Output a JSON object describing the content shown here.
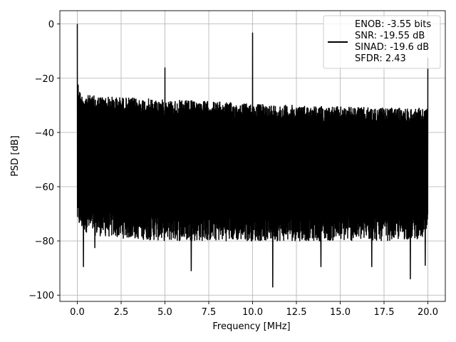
{
  "chart_data": {
    "type": "line",
    "xlabel": "Frequency [MHz]",
    "ylabel": "PSD [dB]",
    "xlim": [
      -0.996,
      20.996
    ],
    "ylim": [
      -102.3,
      4.9
    ],
    "xticks": [
      0.0,
      2.5,
      5.0,
      7.5,
      10.0,
      12.5,
      15.0,
      17.5,
      20.0
    ],
    "xtick_labels": [
      "0.0",
      "2.5",
      "5.0",
      "7.5",
      "10.0",
      "12.5",
      "15.0",
      "17.5",
      "20.0"
    ],
    "yticks": [
      0,
      -20,
      -40,
      -60,
      -80,
      -100
    ],
    "ytick_labels": [
      "0",
      "−20",
      "−40",
      "−60",
      "−80",
      "−100"
    ],
    "grid": true,
    "legend_position": "upper right",
    "series": [
      {
        "name": "ENOB: -3.55 bits\nSNR: -19.55 dB\nSINAD: -19.6 dB\nSFDR: 2.43",
        "color": "#000000",
        "noise_floor_envelope": {
          "x": [
            0.0,
            0.2,
            1.0,
            2.5,
            5.0,
            7.5,
            10.0,
            12.5,
            15.0,
            17.5,
            20.0
          ],
          "upper": [
            -20,
            -26,
            -26.5,
            -27,
            -28,
            -28.5,
            -29.5,
            -30,
            -30.5,
            -31,
            -31
          ],
          "lower": [
            -70,
            -72,
            -74,
            -75,
            -76,
            -76,
            -76,
            -76,
            -76,
            -76,
            -75
          ]
        },
        "spikes": [
          {
            "x": 0.0,
            "y": 0.0
          },
          {
            "x": 5.0,
            "y": -16.2
          },
          {
            "x": 10.0,
            "y": -3.3
          },
          {
            "x": 20.0,
            "y": -12.5
          }
        ],
        "deep_nulls": [
          {
            "x": 0.35,
            "y": -89.5
          },
          {
            "x": 1.0,
            "y": -82.5
          },
          {
            "x": 6.5,
            "y": -91
          },
          {
            "x": 11.15,
            "y": -97
          },
          {
            "x": 13.9,
            "y": -89.5
          },
          {
            "x": 16.8,
            "y": -89.5
          },
          {
            "x": 19.0,
            "y": -94
          },
          {
            "x": 19.85,
            "y": -89
          }
        ]
      }
    ]
  }
}
